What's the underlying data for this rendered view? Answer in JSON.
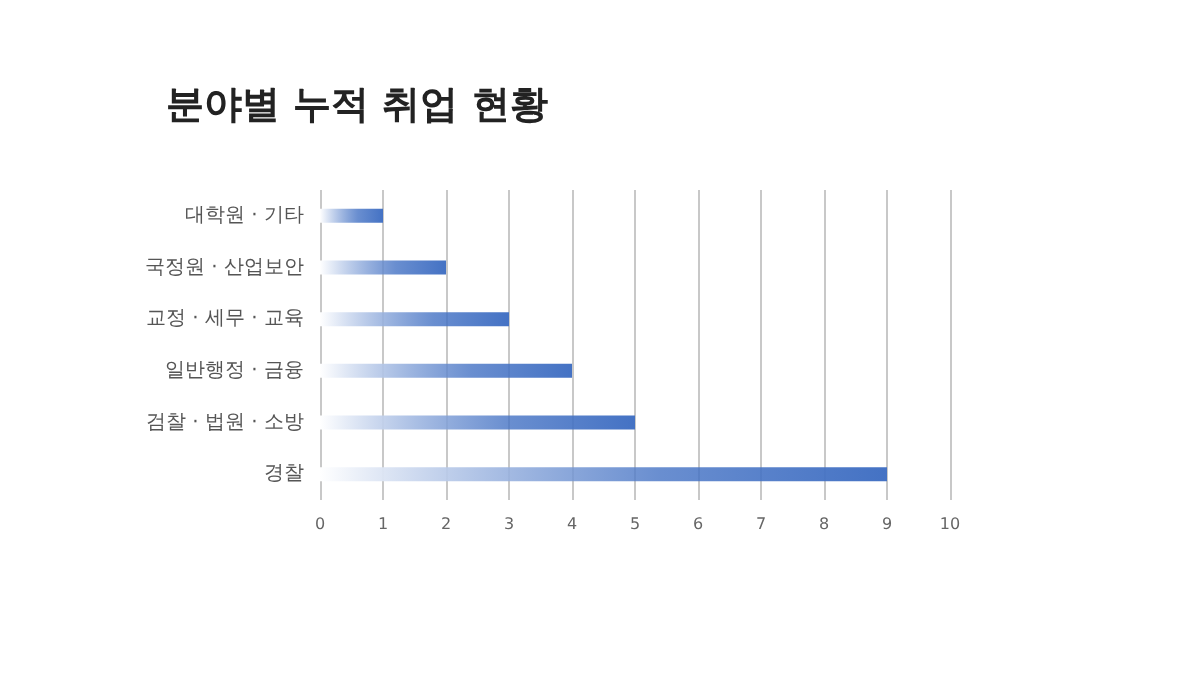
{
  "chart_data": {
    "type": "bar",
    "title": "분야별 누적 취업 현황",
    "orientation": "horizontal",
    "categories": [
      "대학원 · 기타",
      "국정원 · 산업보안",
      "교정 · 세무 · 교육",
      "일반행정 · 금융",
      "검찰 · 법원 · 소방",
      "경찰"
    ],
    "values": [
      1,
      2,
      3,
      4,
      5,
      9
    ],
    "color": "#4472c4",
    "xlim": [
      0,
      10
    ],
    "xticks": [
      0,
      1,
      2,
      3,
      4,
      5,
      6,
      7,
      8,
      9,
      10
    ],
    "grid": "x"
  }
}
